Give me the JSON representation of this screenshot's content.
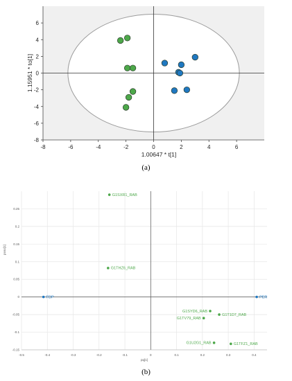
{
  "panel_labels": {
    "a": "(a)",
    "b": "(b)"
  },
  "chart_data": [
    {
      "type": "scatter",
      "panel": "(a)",
      "xlabel": "1.00647 * t[1]",
      "ylabel": "1.15951 * to[1]",
      "xlim": [
        -8,
        8
      ],
      "ylim": [
        -8,
        8
      ],
      "xticks": [
        -8,
        -6,
        -4,
        -2,
        0,
        2,
        4,
        6
      ],
      "yticks": [
        -8,
        -6,
        -4,
        -2,
        0,
        2,
        4,
        6
      ],
      "grid": false,
      "shaded_background": true,
      "ellipse": {
        "rx": 6.2,
        "ry": 7.05
      },
      "colors": {
        "green": "#4da84a",
        "blue": "#1f78c1",
        "background": "#f0f0f0"
      },
      "series": [
        {
          "color": "#4da84a",
          "points": [
            [
              -2.4,
              3.9
            ],
            [
              -1.9,
              4.2
            ],
            [
              -1.9,
              0.6
            ],
            [
              -1.5,
              0.6
            ],
            [
              -1.5,
              -2.2
            ],
            [
              -1.8,
              -2.9
            ],
            [
              -2.0,
              -4.1
            ]
          ]
        },
        {
          "color": "#1f78c1",
          "points": [
            [
              0.8,
              1.2
            ],
            [
              1.8,
              0.1
            ],
            [
              2.0,
              1.0
            ],
            [
              3.0,
              1.9
            ],
            [
              1.9,
              0.0
            ],
            [
              1.5,
              -2.1
            ],
            [
              2.4,
              -2.0
            ]
          ]
        }
      ]
    },
    {
      "type": "scatter",
      "panel": "(b)",
      "xlabel": "pq[1]",
      "ylabel": "poso[1]",
      "xlim": [
        -0.5,
        0.45
      ],
      "ylim": [
        -0.15,
        0.3
      ],
      "xticks": [
        "-0.5",
        "-0.4",
        "-0.3",
        "-0.2",
        "-0.1",
        "0",
        "0.1",
        "0.2",
        "0.3",
        "0.4"
      ],
      "yticks": [
        "0.25",
        "0.2",
        "0.15",
        "0.1",
        "0.05",
        "0",
        "-0.05",
        "-0.1",
        "-0.15"
      ],
      "grid": true,
      "colors": {
        "green": "#4da84a",
        "blue": "#1f78c1"
      },
      "points": [
        {
          "label": "G1SXR1_RAB",
          "x": -0.16,
          "y": 0.29,
          "color": "#4da84a"
        },
        {
          "label": "G1THZ6_RAB",
          "x": -0.165,
          "y": 0.082,
          "color": "#4da84a"
        },
        {
          "label": "FDP",
          "x": -0.415,
          "y": 0.0,
          "color": "#1f78c1"
        },
        {
          "label": "PER",
          "x": 0.41,
          "y": 0.0,
          "color": "#1f78c1"
        },
        {
          "label": "G1SYD6_RAB",
          "x": 0.23,
          "y": -0.04,
          "color": "#4da84a"
        },
        {
          "label": "G1T1D7_RAB",
          "x": 0.265,
          "y": -0.05,
          "color": "#4da84a"
        },
        {
          "label": "G1TV79_RAB",
          "x": 0.205,
          "y": -0.06,
          "color": "#4da84a"
        },
        {
          "label": "G1U2G1_RAB",
          "x": 0.245,
          "y": -0.13,
          "color": "#4da84a"
        },
        {
          "label": "G1TFZ1_RAB",
          "x": 0.31,
          "y": -0.133,
          "color": "#4da84a"
        }
      ]
    }
  ]
}
